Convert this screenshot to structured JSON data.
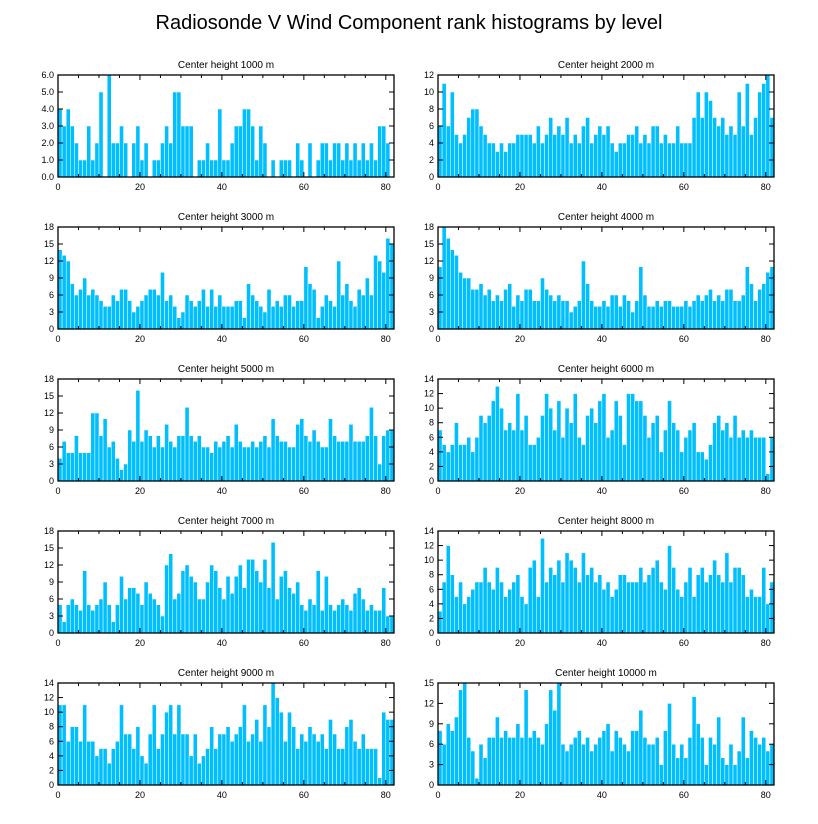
{
  "figure": {
    "title": "Radiosonde V Wind Component rank histograms by level",
    "bar_color": "#00bfff",
    "bar_edge_color": "#ffffff",
    "axis_color": "#000000"
  },
  "chart_data": [
    {
      "type": "bar",
      "title": "Center height 1000 m",
      "x_start": 0,
      "xlim": [
        0,
        82
      ],
      "ylim": [
        0,
        6
      ],
      "xticks": [
        0,
        20,
        40,
        60,
        80
      ],
      "yticks": [
        0,
        1,
        2,
        3,
        4,
        5,
        6
      ],
      "ytick_labels": [
        "0.0",
        "1.0",
        "2.0",
        "3.0",
        "4.0",
        "5.0",
        "6.0"
      ],
      "values": [
        4,
        3,
        4,
        3,
        2,
        1,
        1,
        3,
        1,
        2,
        5,
        0,
        6,
        2,
        2,
        3,
        2,
        0,
        2,
        3,
        1,
        2,
        0,
        1,
        1,
        2,
        3,
        2,
        5,
        5,
        3,
        3,
        3,
        0,
        1,
        1,
        2,
        1,
        1,
        4,
        1,
        1,
        2,
        3,
        3,
        4,
        4,
        3,
        1,
        3,
        2,
        0,
        1,
        0,
        1,
        1,
        1,
        0,
        2,
        1,
        0,
        2,
        0,
        1,
        2,
        2,
        1,
        2,
        2,
        1,
        2,
        1,
        2,
        1,
        2,
        1,
        2,
        1,
        3,
        3,
        2
      ]
    },
    {
      "type": "bar",
      "title": "Center height 2000 m",
      "x_start": 0,
      "xlim": [
        0,
        82
      ],
      "ylim": [
        0,
        12
      ],
      "xticks": [
        0,
        20,
        40,
        60,
        80
      ],
      "yticks": [
        0,
        2,
        4,
        6,
        8,
        10,
        12
      ],
      "ytick_labels": [
        "0",
        "2",
        "4",
        "6",
        "8",
        "10",
        "12"
      ],
      "values": [
        6,
        11,
        6,
        10,
        5,
        4,
        5,
        7,
        8,
        8,
        6,
        5,
        4,
        4,
        3,
        4,
        3,
        4,
        4,
        5,
        5,
        5,
        5,
        4,
        6,
        4,
        5,
        7,
        5,
        6,
        5,
        7,
        4,
        5,
        4,
        6,
        7,
        4,
        5,
        6,
        5,
        6,
        4,
        3,
        4,
        4,
        5,
        5,
        6,
        4,
        5,
        4,
        6,
        6,
        4,
        5,
        4,
        4,
        6,
        4,
        4,
        4,
        7,
        10,
        7,
        10,
        9,
        7,
        6,
        7,
        5,
        6,
        5,
        10,
        6,
        11,
        5,
        7,
        10,
        11,
        12,
        7
      ]
    },
    {
      "type": "bar",
      "title": "Center height 3000 m",
      "x_start": 0,
      "xlim": [
        0,
        82
      ],
      "ylim": [
        0,
        18
      ],
      "xticks": [
        0,
        20,
        40,
        60,
        80
      ],
      "yticks": [
        0,
        3,
        6,
        9,
        12,
        15,
        18
      ],
      "ytick_labels": [
        "0",
        "3",
        "6",
        "9",
        "12",
        "15",
        "18"
      ],
      "values": [
        14,
        13,
        12,
        8,
        6,
        7,
        9,
        6,
        7,
        6,
        5,
        4,
        4,
        6,
        5,
        7,
        7,
        5,
        3,
        4,
        5,
        6,
        7,
        7,
        6,
        10,
        5,
        6,
        4,
        2,
        3,
        6,
        5,
        4,
        5,
        7,
        4,
        7,
        4,
        6,
        4,
        4,
        4,
        5,
        5,
        2,
        8,
        6,
        5,
        4,
        3,
        7,
        4,
        5,
        4,
        6,
        6,
        4,
        5,
        5,
        11,
        8,
        7,
        2,
        4,
        6,
        5,
        4,
        12,
        6,
        8,
        5,
        4,
        7,
        6,
        9,
        6,
        13,
        12,
        10,
        16,
        15
      ]
    },
    {
      "type": "bar",
      "title": "Center height 4000 m",
      "x_start": 0,
      "xlim": [
        0,
        82
      ],
      "ylim": [
        0,
        18
      ],
      "xticks": [
        0,
        20,
        40,
        60,
        80
      ],
      "yticks": [
        0,
        3,
        6,
        9,
        12,
        15,
        18
      ],
      "ytick_labels": [
        "0",
        "3",
        "6",
        "9",
        "12",
        "15",
        "18"
      ],
      "values": [
        11,
        18,
        16,
        14,
        13,
        10,
        9,
        9,
        7,
        7,
        8,
        6,
        7,
        5,
        6,
        5,
        7,
        8,
        4,
        6,
        5,
        7,
        7,
        5,
        5,
        9,
        7,
        6,
        5,
        6,
        5,
        5,
        3,
        4,
        5,
        12,
        8,
        5,
        4,
        4,
        5,
        4,
        6,
        6,
        4,
        6,
        5,
        3,
        5,
        11,
        6,
        4,
        4,
        5,
        4,
        5,
        5,
        4,
        4,
        4,
        5,
        4,
        5,
        6,
        5,
        6,
        7,
        5,
        6,
        5,
        7,
        7,
        5,
        5,
        6,
        11,
        8,
        5,
        7,
        8,
        10,
        11
      ]
    },
    {
      "type": "bar",
      "title": "Center height 5000 m",
      "x_start": 0,
      "xlim": [
        0,
        82
      ],
      "ylim": [
        0,
        18
      ],
      "xticks": [
        0,
        20,
        40,
        60,
        80
      ],
      "yticks": [
        0,
        3,
        6,
        9,
        12,
        15,
        18
      ],
      "ytick_labels": [
        "0",
        "3",
        "6",
        "9",
        "12",
        "15",
        "18"
      ],
      "values": [
        4,
        7,
        5,
        5,
        8,
        5,
        5,
        5,
        12,
        12,
        8,
        11,
        6,
        7,
        4,
        2,
        3,
        9,
        7,
        16,
        7,
        9,
        8,
        6,
        8,
        6,
        10,
        7,
        6,
        8,
        8,
        13,
        8,
        7,
        8,
        6,
        6,
        5,
        7,
        6,
        7,
        8,
        6,
        10,
        7,
        6,
        6,
        7,
        6,
        7,
        8,
        6,
        11,
        8,
        7,
        7,
        6,
        6,
        10,
        11,
        8,
        7,
        9,
        7,
        6,
        6,
        11,
        8,
        7,
        7,
        7,
        10,
        7,
        7,
        7,
        8,
        13,
        8,
        3,
        8,
        9,
        9
      ]
    },
    {
      "type": "bar",
      "title": "Center height 6000 m",
      "x_start": 0,
      "xlim": [
        0,
        82
      ],
      "ylim": [
        0,
        14
      ],
      "xticks": [
        0,
        20,
        40,
        60,
        80
      ],
      "yticks": [
        0,
        2,
        4,
        6,
        8,
        10,
        12,
        14
      ],
      "ytick_labels": [
        "0",
        "2",
        "4",
        "6",
        "8",
        "10",
        "12",
        "14"
      ],
      "values": [
        7,
        5,
        4,
        5,
        8,
        5,
        5,
        6,
        4,
        6,
        9,
        8,
        9,
        11,
        13,
        10,
        7,
        8,
        7,
        12,
        7,
        9,
        5,
        5,
        6,
        9,
        12,
        10,
        7,
        11,
        6,
        10,
        8,
        12,
        6,
        5,
        9,
        10,
        8,
        11,
        12,
        6,
        7,
        11,
        9,
        5,
        12,
        12,
        11,
        11,
        9,
        6,
        8,
        9,
        4,
        7,
        11,
        8,
        7,
        4,
        6,
        7,
        8,
        4,
        4,
        3,
        5,
        8,
        9,
        7,
        8,
        6,
        9,
        6,
        7,
        6,
        7,
        6,
        6,
        6,
        1,
        6
      ]
    },
    {
      "type": "bar",
      "title": "Center height 7000 m",
      "x_start": 0,
      "xlim": [
        0,
        82
      ],
      "ylim": [
        0,
        18
      ],
      "xticks": [
        0,
        20,
        40,
        60,
        80
      ],
      "yticks": [
        0,
        3,
        6,
        9,
        12,
        15,
        18
      ],
      "ytick_labels": [
        "0",
        "3",
        "6",
        "9",
        "12",
        "15",
        "18"
      ],
      "values": [
        5,
        2,
        5,
        6,
        5,
        4,
        11,
        5,
        4,
        5,
        6,
        9,
        5,
        2,
        5,
        10,
        6,
        8,
        8,
        7,
        5,
        9,
        7,
        6,
        5,
        3,
        12,
        14,
        6,
        7,
        11,
        12,
        10,
        9,
        6,
        6,
        9,
        12,
        11,
        8,
        6,
        10,
        7,
        10,
        12,
        8,
        13,
        13,
        11,
        9,
        13,
        8,
        16,
        6,
        10,
        11,
        8,
        7,
        9,
        5,
        4,
        6,
        5,
        11,
        4,
        10,
        5,
        4,
        5,
        6,
        5,
        4,
        7,
        8,
        6,
        4,
        5,
        4,
        4,
        8,
        3,
        3
      ]
    },
    {
      "type": "bar",
      "title": "Center height 8000 m",
      "x_start": 0,
      "xlim": [
        0,
        82
      ],
      "ylim": [
        0,
        14
      ],
      "xticks": [
        0,
        20,
        40,
        60,
        80
      ],
      "yticks": [
        0,
        2,
        4,
        6,
        8,
        10,
        12,
        14
      ],
      "ytick_labels": [
        "0",
        "2",
        "4",
        "6",
        "8",
        "10",
        "12",
        "14"
      ],
      "values": [
        3,
        7,
        12,
        8,
        5,
        7,
        4,
        5,
        6,
        7,
        7,
        9,
        7,
        6,
        9,
        7,
        5,
        6,
        7,
        8,
        5,
        4,
        9,
        10,
        5,
        13,
        7,
        9,
        8,
        10,
        7,
        11,
        10,
        9,
        7,
        11,
        8,
        9,
        7,
        8,
        6,
        7,
        5,
        6,
        8,
        8,
        7,
        7,
        7,
        9,
        7,
        8,
        9,
        10,
        7,
        6,
        12,
        9,
        6,
        5,
        7,
        9,
        5,
        8,
        9,
        7,
        8,
        10,
        8,
        7,
        11,
        7,
        9,
        9,
        8,
        5,
        6,
        5,
        5,
        9,
        4,
        7
      ]
    },
    {
      "type": "bar",
      "title": "Center height 9000 m",
      "x_start": 0,
      "xlim": [
        0,
        82
      ],
      "ylim": [
        0,
        14
      ],
      "xticks": [
        0,
        20,
        40,
        60,
        80
      ],
      "yticks": [
        0,
        2,
        4,
        6,
        8,
        10,
        12,
        14
      ],
      "ytick_labels": [
        "0",
        "2",
        "4",
        "6",
        "8",
        "10",
        "12",
        "14"
      ],
      "values": [
        11,
        11,
        6,
        8,
        8,
        6,
        11,
        6,
        6,
        4,
        5,
        5,
        3,
        5,
        6,
        11,
        7,
        7,
        5,
        8,
        4,
        3,
        7,
        11,
        5,
        7,
        10,
        11,
        7,
        11,
        7,
        7,
        4,
        7,
        3,
        4,
        5,
        8,
        5,
        7,
        7,
        8,
        6,
        7,
        8,
        11,
        6,
        7,
        9,
        6,
        11,
        8,
        14,
        12,
        10,
        6,
        10,
        8,
        5,
        7,
        6,
        8,
        7,
        6,
        7,
        5,
        9,
        7,
        5,
        5,
        8,
        9,
        6,
        5,
        7,
        5,
        5,
        5,
        1,
        10,
        9,
        9
      ]
    },
    {
      "type": "bar",
      "title": "Center height 10000 m",
      "x_start": 0,
      "xlim": [
        0,
        82
      ],
      "ylim": [
        0,
        15
      ],
      "xticks": [
        0,
        20,
        40,
        60,
        80
      ],
      "yticks": [
        0,
        3,
        6,
        9,
        12,
        15
      ],
      "ytick_labels": [
        "0",
        "3",
        "6",
        "9",
        "12",
        "15"
      ],
      "values": [
        8,
        6,
        9,
        8,
        10,
        14,
        15,
        7,
        5,
        1,
        6,
        4,
        7,
        7,
        10,
        7,
        8,
        7,
        7,
        9,
        7,
        14,
        7,
        8,
        7,
        6,
        9,
        14,
        11,
        15,
        6,
        5,
        6,
        7,
        8,
        6,
        7,
        5,
        6,
        7,
        8,
        9,
        5,
        8,
        7,
        6,
        5,
        8,
        8,
        11,
        7,
        6,
        6,
        7,
        3,
        8,
        12,
        6,
        4,
        6,
        4,
        7,
        13,
        9,
        7,
        3,
        7,
        6,
        10,
        4,
        3,
        6,
        3,
        5,
        10,
        4,
        8,
        7,
        6,
        7,
        5,
        6
      ]
    }
  ]
}
